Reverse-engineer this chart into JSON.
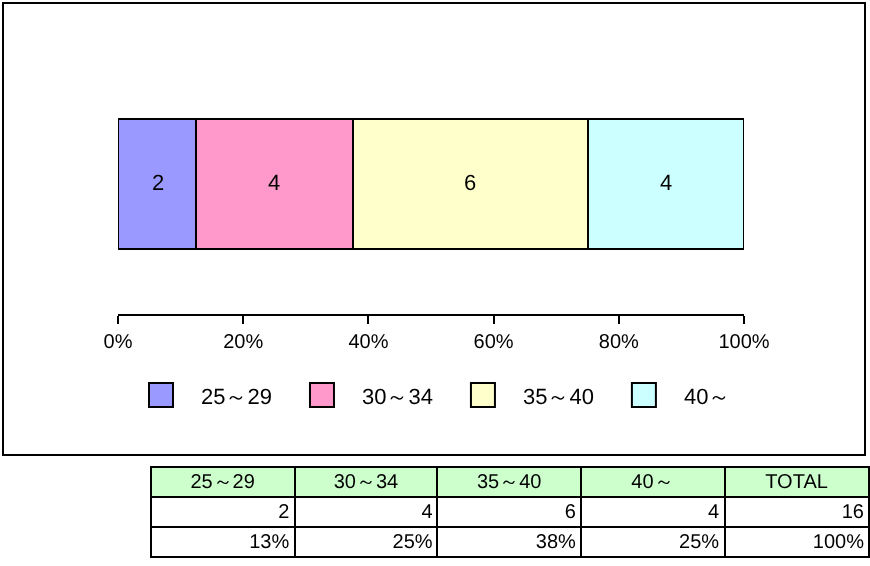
{
  "chart_data": {
    "type": "bar",
    "orientation": "horizontal",
    "stacked": true,
    "categories": [
      null
    ],
    "series": [
      {
        "name": "25～29",
        "color": "#9999ff",
        "values": [
          12.5
        ]
      },
      {
        "name": "30～34",
        "color": "#ff99cc",
        "values": [
          25
        ]
      },
      {
        "name": "35～40",
        "color": "#ffffcc",
        "values": [
          37.5
        ]
      },
      {
        "name": "40～",
        "color": "#ccffff",
        "values": [
          25
        ]
      }
    ],
    "xlim": [
      0,
      100
    ],
    "xticks": [
      {
        "value": 0,
        "label": "0%"
      },
      {
        "value": 20,
        "label": "20%"
      },
      {
        "value": 40,
        "label": "40%"
      },
      {
        "value": 60,
        "label": "60%"
      },
      {
        "value": 80,
        "label": "80%"
      },
      {
        "value": 100,
        "label": "100%"
      }
    ],
    "legend": "bottom",
    "annotations": [
      "2",
      "4",
      "6",
      "4",
      "TOTAL",
      "16",
      "13%",
      "25%",
      "38%",
      "25%",
      "100%"
    ]
  }
}
